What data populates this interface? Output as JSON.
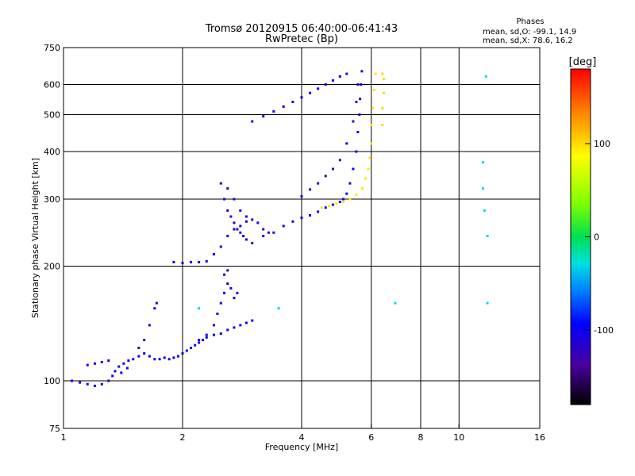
{
  "header": {
    "title_line1": "Tromsø 20120915 06:40:00-06:41:43",
    "title_line2": "RwPretec (Bp)",
    "phases_title": "Phases",
    "phases_line1": "mean, sd,O: -99.1, 14.9",
    "phases_line2": "mean, sd,X:  78.6, 16.2"
  },
  "colorbar": {
    "label": "[deg]",
    "tick_labels": [
      "100",
      "0",
      "-100"
    ],
    "ticks": [
      100,
      0,
      -100
    ],
    "range": [
      -180,
      180
    ]
  },
  "chart_data": {
    "type": "scatter",
    "title": "Tromsø 20120915 06:40:00-06:41:43",
    "subtitle": "RwPretec (Bp)",
    "xlabel": "Frequency [MHz]",
    "ylabel": "Stationary phase Virtual Height [km]",
    "x_scale": "log",
    "y_scale": "log",
    "xlim": [
      1,
      16
    ],
    "ylim": [
      75,
      750
    ],
    "x_ticks": [
      1,
      2,
      4,
      6,
      8,
      10,
      16
    ],
    "x_tick_labels": [
      "1",
      "2",
      "4",
      "6",
      "8",
      "10",
      "16"
    ],
    "y_ticks": [
      75,
      100,
      200,
      300,
      400,
      500,
      600,
      750
    ],
    "y_tick_labels": [
      "75",
      "100",
      "200",
      "300",
      "400",
      "500",
      "600",
      "750"
    ],
    "x_grid": [
      2,
      4,
      6,
      8,
      10
    ],
    "y_grid": [
      100,
      200,
      300,
      400,
      500,
      600
    ],
    "grid": true,
    "color_mapping": "phase (deg)",
    "series": [
      {
        "points": [
          [
            1.05,
            100
          ],
          [
            1.1,
            99
          ],
          [
            1.15,
            98
          ],
          [
            1.2,
            97
          ],
          [
            1.25,
            98
          ],
          [
            1.3,
            100
          ],
          [
            1.33,
            103
          ],
          [
            1.35,
            106
          ],
          [
            1.38,
            109
          ],
          [
            1.42,
            111
          ],
          [
            1.46,
            113
          ],
          [
            1.5,
            114
          ],
          [
            1.55,
            116
          ],
          [
            1.6,
            118
          ],
          [
            1.65,
            116
          ],
          [
            1.7,
            114
          ],
          [
            1.75,
            114
          ],
          [
            1.8,
            115
          ],
          [
            1.85,
            114
          ],
          [
            1.9,
            115
          ],
          [
            1.95,
            116
          ],
          [
            2.0,
            118
          ],
          [
            2.05,
            120
          ],
          [
            2.1,
            122
          ],
          [
            2.15,
            124
          ],
          [
            2.2,
            126
          ],
          [
            2.25,
            128
          ],
          [
            2.3,
            130
          ],
          [
            2.4,
            132
          ],
          [
            2.5,
            133
          ],
          [
            2.6,
            136
          ],
          [
            2.7,
            138
          ],
          [
            2.8,
            140
          ],
          [
            2.9,
            142
          ],
          [
            3.0,
            144
          ]
        ],
        "phase": -100
      },
      {
        "points": [
          [
            1.15,
            110
          ],
          [
            1.2,
            111
          ],
          [
            1.25,
            112
          ],
          [
            1.3,
            113
          ],
          [
            1.4,
            105
          ],
          [
            1.45,
            108
          ],
          [
            1.55,
            122
          ],
          [
            1.6,
            128
          ],
          [
            1.65,
            140
          ],
          [
            1.7,
            155
          ],
          [
            1.72,
            160
          ],
          [
            2.2,
            128
          ],
          [
            2.3,
            132
          ],
          [
            2.4,
            140
          ],
          [
            2.45,
            150
          ],
          [
            2.5,
            160
          ],
          [
            2.55,
            170
          ],
          [
            2.6,
            180
          ],
          [
            2.65,
            175
          ],
          [
            2.7,
            165
          ],
          [
            2.75,
            170
          ],
          [
            2.55,
            190
          ],
          [
            2.6,
            195
          ]
        ],
        "phase": -105
      },
      {
        "points": [
          [
            1.9,
            205
          ],
          [
            2.0,
            204
          ],
          [
            2.1,
            205
          ],
          [
            2.2,
            205
          ],
          [
            2.3,
            206
          ],
          [
            2.4,
            215
          ],
          [
            2.5,
            225
          ],
          [
            2.6,
            240
          ],
          [
            2.7,
            250
          ],
          [
            2.8,
            255
          ],
          [
            2.9,
            262
          ]
        ],
        "phase": -100
      },
      {
        "points": [
          [
            2.5,
            330
          ],
          [
            2.55,
            300
          ],
          [
            2.6,
            280
          ],
          [
            2.65,
            270
          ],
          [
            2.7,
            260
          ],
          [
            2.75,
            250
          ],
          [
            2.8,
            245
          ],
          [
            2.85,
            240
          ],
          [
            2.9,
            235
          ],
          [
            3.0,
            230
          ],
          [
            2.6,
            320
          ],
          [
            2.7,
            300
          ],
          [
            2.8,
            280
          ],
          [
            2.9,
            270
          ],
          [
            3.0,
            265
          ],
          [
            3.1,
            260
          ],
          [
            3.2,
            250
          ],
          [
            3.3,
            245
          ]
        ],
        "phase": -110
      },
      {
        "points": [
          [
            3.2,
            240
          ],
          [
            3.4,
            245
          ],
          [
            3.6,
            255
          ],
          [
            3.8,
            262
          ],
          [
            4.0,
            268
          ],
          [
            4.2,
            272
          ],
          [
            4.4,
            278
          ],
          [
            4.6,
            285
          ],
          [
            4.8,
            290
          ],
          [
            5.0,
            295
          ],
          [
            5.1,
            300
          ],
          [
            5.2,
            310
          ],
          [
            5.3,
            330
          ],
          [
            5.4,
            360
          ],
          [
            5.5,
            400
          ],
          [
            5.55,
            450
          ],
          [
            5.6,
            500
          ],
          [
            5.62,
            550
          ],
          [
            5.65,
            600
          ],
          [
            5.68,
            650
          ]
        ],
        "phase": -100
      },
      {
        "points": [
          [
            4.0,
            305
          ],
          [
            4.2,
            318
          ],
          [
            4.4,
            330
          ],
          [
            4.6,
            345
          ],
          [
            4.8,
            360
          ],
          [
            5.0,
            380
          ],
          [
            5.2,
            420
          ],
          [
            5.4,
            480
          ],
          [
            5.5,
            540
          ],
          [
            5.55,
            600
          ]
        ],
        "phase": -120
      },
      {
        "points": [
          [
            3.0,
            480
          ],
          [
            3.2,
            495
          ],
          [
            3.4,
            510
          ],
          [
            3.6,
            525
          ],
          [
            3.8,
            540
          ],
          [
            4.0,
            555
          ],
          [
            4.2,
            570
          ],
          [
            4.4,
            585
          ],
          [
            4.6,
            600
          ],
          [
            4.8,
            615
          ],
          [
            5.0,
            630
          ],
          [
            5.2,
            640
          ]
        ],
        "phase": -100
      },
      {
        "points": [
          [
            4.5,
            285
          ],
          [
            4.7,
            288
          ],
          [
            4.9,
            292
          ],
          [
            5.1,
            295
          ],
          [
            5.3,
            300
          ],
          [
            5.5,
            308
          ],
          [
            5.7,
            320
          ],
          [
            5.8,
            340
          ],
          [
            5.9,
            360
          ],
          [
            5.95,
            385
          ],
          [
            6.0,
            420
          ],
          [
            6.0,
            470
          ],
          [
            6.05,
            520
          ],
          [
            6.1,
            580
          ],
          [
            6.15,
            640
          ]
        ],
        "phase": 95
      },
      {
        "points": [
          [
            6.4,
            470
          ],
          [
            6.4,
            520
          ],
          [
            6.45,
            570
          ],
          [
            6.45,
            620
          ],
          [
            6.4,
            640
          ]
        ],
        "phase": 100
      },
      {
        "points": [
          [
            11.7,
            630
          ],
          [
            11.5,
            375
          ],
          [
            11.5,
            320
          ],
          [
            11.6,
            280
          ],
          [
            11.8,
            240
          ],
          [
            11.8,
            160
          ],
          [
            6.9,
            160
          ],
          [
            3.5,
            155
          ],
          [
            2.2,
            155
          ]
        ],
        "phase": -30
      }
    ]
  }
}
